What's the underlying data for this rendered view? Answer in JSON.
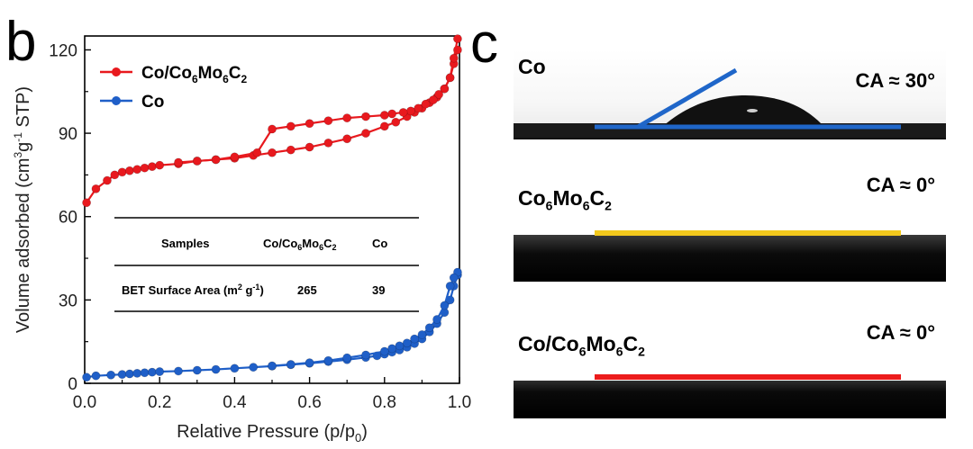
{
  "panel_b_label": "b",
  "panel_c_label": "c",
  "chart_data": {
    "type": "line",
    "xlabel": "Relative Pressure (p/p0)",
    "xlabel_main": "Relative Pressure (p/p",
    "xlabel_sub": "0",
    "xlabel_close": ")",
    "ylabel": "Volume adsorbed (cm3g-1 STP)",
    "xlim": [
      0.0,
      1.0
    ],
    "ylim": [
      0,
      125
    ],
    "xticks": [
      "0.0",
      "0.2",
      "0.4",
      "0.6",
      "0.8",
      "1.0"
    ],
    "xtick_values": [
      0.0,
      0.2,
      0.4,
      0.6,
      0.8,
      1.0
    ],
    "yticks": [
      "0",
      "30",
      "60",
      "90",
      "120"
    ],
    "ytick_values": [
      0,
      30,
      60,
      90,
      120
    ],
    "legend_position": "top-left",
    "series": [
      {
        "name": "Co/Co6Mo6C2",
        "color": "#e8191e",
        "adsorption": {
          "x": [
            0.005,
            0.03,
            0.06,
            0.08,
            0.1,
            0.12,
            0.14,
            0.16,
            0.18,
            0.2,
            0.25,
            0.3,
            0.35,
            0.4,
            0.45,
            0.5,
            0.55,
            0.6,
            0.65,
            0.7,
            0.75,
            0.8,
            0.83,
            0.86,
            0.88,
            0.9,
            0.92,
            0.94,
            0.96,
            0.975,
            0.985,
            0.995
          ],
          "y": [
            65,
            70,
            73,
            75,
            76,
            76.5,
            77,
            77.5,
            78,
            78.5,
            79,
            80,
            80.5,
            81,
            82,
            83,
            84,
            85,
            86.5,
            88,
            90,
            92.5,
            94,
            96,
            97.5,
            99,
            101,
            103,
            106,
            110,
            115,
            120
          ]
        },
        "desorption": {
          "x": [
            0.995,
            0.985,
            0.975,
            0.96,
            0.945,
            0.93,
            0.91,
            0.89,
            0.87,
            0.85,
            0.82,
            0.8,
            0.75,
            0.7,
            0.65,
            0.6,
            0.55,
            0.5,
            0.46,
            0.4,
            0.35,
            0.3,
            0.25
          ],
          "y": [
            124,
            117,
            110,
            106,
            104,
            102,
            100.5,
            99,
            98,
            97.5,
            97,
            96.5,
            96,
            95.5,
            94.5,
            93.5,
            92.5,
            91.5,
            83,
            81.5,
            80.5,
            80,
            79.5
          ]
        }
      },
      {
        "name": "Co",
        "color": "#1f5fc8",
        "adsorption": {
          "x": [
            0.005,
            0.03,
            0.07,
            0.1,
            0.12,
            0.14,
            0.16,
            0.18,
            0.2,
            0.25,
            0.3,
            0.35,
            0.4,
            0.45,
            0.5,
            0.55,
            0.6,
            0.65,
            0.7,
            0.75,
            0.78,
            0.8,
            0.82,
            0.84,
            0.86,
            0.88,
            0.9,
            0.92,
            0.94,
            0.96,
            0.975,
            0.985,
            0.995
          ],
          "y": [
            2.2,
            2.7,
            3.0,
            3.2,
            3.4,
            3.6,
            3.8,
            4.0,
            4.2,
            4.4,
            4.7,
            5.0,
            5.4,
            5.8,
            6.2,
            6.7,
            7.2,
            7.8,
            8.5,
            9.3,
            9.9,
            10.5,
            11.2,
            12.0,
            13.0,
            14.3,
            16.0,
            18.5,
            21.5,
            25.5,
            30,
            35,
            39
          ]
        },
        "desorption": {
          "x": [
            0.995,
            0.985,
            0.975,
            0.96,
            0.94,
            0.92,
            0.9,
            0.88,
            0.86,
            0.84,
            0.82,
            0.8,
            0.75,
            0.7,
            0.65,
            0.6,
            0.55,
            0.5
          ],
          "y": [
            40,
            38,
            35,
            28,
            23,
            20,
            17.5,
            16,
            14.5,
            13.5,
            12.5,
            11.5,
            10.2,
            9.2,
            8.2,
            7.4,
            6.8,
            6.3
          ]
        }
      }
    ],
    "legend": [
      {
        "pre": "Co/Co",
        "s1": "6",
        "mid": "Mo",
        "s2": "6",
        "mid2": "C",
        "s3": "2",
        "color": "#e8191e"
      },
      {
        "pre": "Co",
        "s1": "",
        "mid": "",
        "s2": "",
        "mid2": "",
        "s3": "",
        "color": "#1f5fc8"
      }
    ],
    "inset_table": {
      "headers": [
        "Samples",
        "Co/Co6Mo6C2",
        "Co"
      ],
      "row_label": "BET Surface Area (m2 g-1)",
      "row_values": [
        "265",
        "39"
      ]
    }
  },
  "photos": [
    {
      "sample": "Co",
      "sample_parts": {
        "a": "Co",
        "s1": "",
        "b": "",
        "s2": "",
        "c": "",
        "s3": ""
      },
      "ca_text": "CA ≈ 30°",
      "line_color": "#1f66c9"
    },
    {
      "sample": "Co6Mo6C2",
      "sample_parts": {
        "a": "Co",
        "s1": "6",
        "b": "Mo",
        "s2": "6",
        "c": "C",
        "s3": "2"
      },
      "ca_text": "CA ≈ 0°",
      "line_color": "#f2c81c"
    },
    {
      "sample": "Co/Co6Mo6C2",
      "sample_parts": {
        "a": "Co/Co",
        "s1": "6",
        "b": "Mo",
        "s2": "6",
        "c": "C",
        "s3": "2"
      },
      "ca_text": "CA ≈ 0°",
      "line_color": "#ec1c1c"
    }
  ]
}
